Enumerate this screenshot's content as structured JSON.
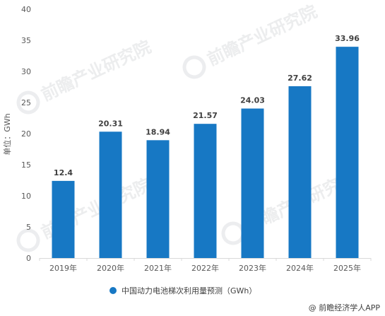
{
  "chart_data": {
    "type": "bar",
    "categories": [
      "2019年",
      "2020年",
      "2021年",
      "2022年",
      "2023年",
      "2024年",
      "2025年"
    ],
    "series": [
      {
        "name": "中国动力电池梯次利用量预测（GWh）",
        "values": [
          12.4,
          20.31,
          18.94,
          21.57,
          24.03,
          27.62,
          33.96
        ],
        "labels": [
          "12.4",
          "20.31",
          "18.94",
          "21.57",
          "24.03",
          "27.62",
          "33.96"
        ]
      }
    ],
    "ylabel": "单位：GWh",
    "ylim": [
      0,
      40
    ],
    "yticks": [
      0,
      5,
      10,
      15,
      20,
      25,
      30,
      35,
      40
    ],
    "grid": false,
    "legend_position": "bottom",
    "bar_color": "#1778c4"
  },
  "watermark": {
    "text": "前瞻产业研究院",
    "source": "@ 前瞻经济学人APP"
  }
}
